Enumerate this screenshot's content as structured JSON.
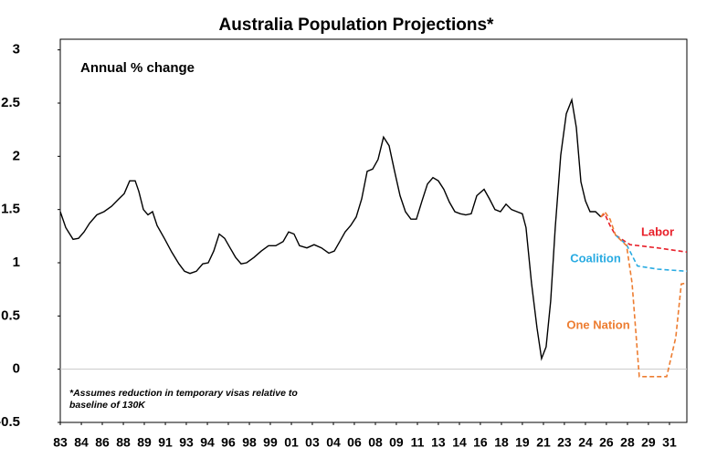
{
  "chart_data": {
    "type": "line",
    "title": "Australia Population Projections*",
    "annotation": "Annual % change",
    "footnote": [
      "*Assumes reduction in temporary visas relative to",
      "baseline of 130K"
    ],
    "xlim": [
      1983,
      2032.37
    ],
    "ylim": [
      -0.5,
      3.1
    ],
    "yticks": [
      3,
      2.5,
      2,
      1.5,
      1,
      0.5,
      0,
      -0.5
    ],
    "xticks": [
      {
        "value": 1983,
        "label": "83"
      },
      {
        "value": 1984.66,
        "label": "84"
      },
      {
        "value": 1986.31,
        "label": "86"
      },
      {
        "value": 1987.97,
        "label": "88"
      },
      {
        "value": 1989.62,
        "label": "89"
      },
      {
        "value": 1991.28,
        "label": "91"
      },
      {
        "value": 1992.93,
        "label": "93"
      },
      {
        "value": 1994.59,
        "label": "94"
      },
      {
        "value": 1996.24,
        "label": "96"
      },
      {
        "value": 1997.9,
        "label": "98"
      },
      {
        "value": 1999.55,
        "label": "99"
      },
      {
        "value": 2001.21,
        "label": "01"
      },
      {
        "value": 2002.86,
        "label": "03"
      },
      {
        "value": 2004.52,
        "label": "04"
      },
      {
        "value": 2006.17,
        "label": "06"
      },
      {
        "value": 2007.83,
        "label": "08"
      },
      {
        "value": 2009.48,
        "label": "09"
      },
      {
        "value": 2011.14,
        "label": "11"
      },
      {
        "value": 2012.79,
        "label": "13"
      },
      {
        "value": 2014.45,
        "label": "14"
      },
      {
        "value": 2016.1,
        "label": "16"
      },
      {
        "value": 2017.76,
        "label": "18"
      },
      {
        "value": 2019.41,
        "label": "19"
      },
      {
        "value": 2021.07,
        "label": "21"
      },
      {
        "value": 2022.72,
        "label": "23"
      },
      {
        "value": 2024.38,
        "label": "24"
      },
      {
        "value": 2026.03,
        "label": "26"
      },
      {
        "value": 2027.69,
        "label": "28"
      },
      {
        "value": 2029.34,
        "label": "29"
      },
      {
        "value": 2031,
        "label": "31"
      }
    ],
    "zero_line": true,
    "series": [
      {
        "color": "#000000",
        "dash": false,
        "x": [
          1983,
          1983.43,
          1984.01,
          1984.44,
          1984.87,
          1985.3,
          1985.88,
          1986.45,
          1987.03,
          1987.61,
          1988.04,
          1988.47,
          1988.9,
          1989.19,
          1989.55,
          1989.91,
          1990.27,
          1990.63,
          1991.2,
          1991.78,
          1992.35,
          1992.79,
          1993.22,
          1993.72,
          1994.23,
          1994.66,
          1995.09,
          1995.52,
          1995.95,
          1996.38,
          1996.82,
          1997.25,
          1997.68,
          1998.26,
          1998.83,
          1999.41,
          1999.98,
          2000.56,
          2000.99,
          2001.42,
          2001.85,
          2002.43,
          2003.0,
          2003.58,
          2004.16,
          2004.59,
          2005.02,
          2005.45,
          2005.88,
          2006.32,
          2006.75,
          2007.18,
          2007.61,
          2008.04,
          2008.47,
          2008.91,
          2009.34,
          2009.77,
          2010.2,
          2010.63,
          2011.06,
          2011.5,
          2011.93,
          2012.36,
          2012.79,
          2013.22,
          2013.66,
          2014.09,
          2014.52,
          2014.95,
          2015.38,
          2015.82,
          2016.39,
          2016.82,
          2017.25,
          2017.68,
          2018.12,
          2018.55,
          2018.98,
          2019.41,
          2019.7,
          2020.13,
          2020.56,
          2020.92,
          2021.28,
          2021.64,
          2022.0,
          2022.43,
          2022.87,
          2023.3,
          2023.66,
          2024.02,
          2024.38,
          2024.74,
          2025.17,
          2025.6
        ],
        "values": [
          1.48,
          1.33,
          1.22,
          1.23,
          1.29,
          1.37,
          1.45,
          1.48,
          1.53,
          1.6,
          1.65,
          1.77,
          1.77,
          1.67,
          1.5,
          1.45,
          1.48,
          1.35,
          1.23,
          1.1,
          0.99,
          0.92,
          0.9,
          0.92,
          0.99,
          1.0,
          1.11,
          1.27,
          1.23,
          1.14,
          1.05,
          0.99,
          1.0,
          1.05,
          1.11,
          1.16,
          1.16,
          1.2,
          1.29,
          1.27,
          1.16,
          1.14,
          1.17,
          1.14,
          1.09,
          1.11,
          1.2,
          1.29,
          1.35,
          1.43,
          1.6,
          1.86,
          1.88,
          1.97,
          2.18,
          2.1,
          1.86,
          1.63,
          1.48,
          1.41,
          1.41,
          1.58,
          1.74,
          1.8,
          1.77,
          1.69,
          1.57,
          1.48,
          1.46,
          1.45,
          1.46,
          1.63,
          1.69,
          1.6,
          1.5,
          1.48,
          1.55,
          1.5,
          1.48,
          1.46,
          1.33,
          0.81,
          0.39,
          0.1,
          0.21,
          0.64,
          1.33,
          2.01,
          2.4,
          2.53,
          2.27,
          1.76,
          1.58,
          1.48,
          1.48,
          1.43
        ]
      },
      {
        "name": "Labor",
        "color": "#e8202a",
        "dash": true,
        "x": [
          2025.6,
          2025.89,
          2026.32,
          2026.75,
          2027.9,
          2030.06,
          2032.37
        ],
        "values": [
          1.43,
          1.46,
          1.35,
          1.26,
          1.17,
          1.14,
          1.1
        ]
      },
      {
        "name": "Coalition",
        "color": "#29abe2",
        "dash": true,
        "x": [
          2026.75,
          2027.62,
          2028.48,
          2030.06,
          2032.37
        ],
        "values": [
          1.26,
          1.17,
          0.97,
          0.94,
          0.92
        ]
      },
      {
        "name": "One Nation",
        "color": "#ed7d31",
        "dash": true,
        "x": [
          2025.6,
          2025.89,
          2026.32,
          2026.75,
          2027.62,
          2028.05,
          2028.62,
          2030.78,
          2031.5,
          2031.93,
          2032.37
        ],
        "values": [
          1.43,
          1.48,
          1.41,
          1.26,
          1.16,
          0.81,
          -0.07,
          -0.07,
          0.3,
          0.8,
          0.81
        ]
      }
    ]
  }
}
